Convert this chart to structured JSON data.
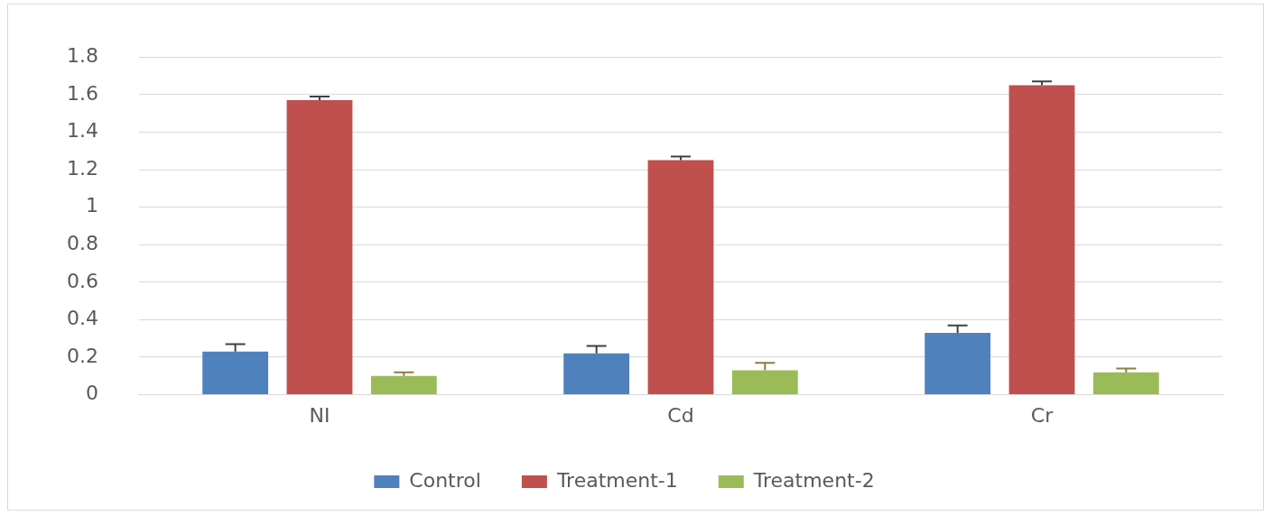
{
  "chart_data": {
    "type": "bar",
    "categories": [
      "NI",
      "Cd",
      "Cr"
    ],
    "series": [
      {
        "name": "Control",
        "color": "#4f81bd",
        "values": [
          0.23,
          0.22,
          0.33
        ],
        "errors": [
          0.04,
          0.04,
          0.04
        ]
      },
      {
        "name": "Treatment-1",
        "color": "#c0504d",
        "values": [
          1.57,
          1.25,
          1.65
        ],
        "errors": [
          0.02,
          0.02,
          0.02
        ]
      },
      {
        "name": "Treatment-2",
        "color": "#9bbb59",
        "values": [
          0.1,
          0.13,
          0.12
        ],
        "errors": [
          0.02,
          0.04,
          0.02
        ]
      }
    ],
    "ylim": [
      0,
      1.8
    ],
    "yticks": [
      0,
      0.2,
      0.4,
      0.6,
      0.8,
      1,
      1.2,
      1.4,
      1.6,
      1.8
    ],
    "grid": "y",
    "legend": "bottom"
  }
}
